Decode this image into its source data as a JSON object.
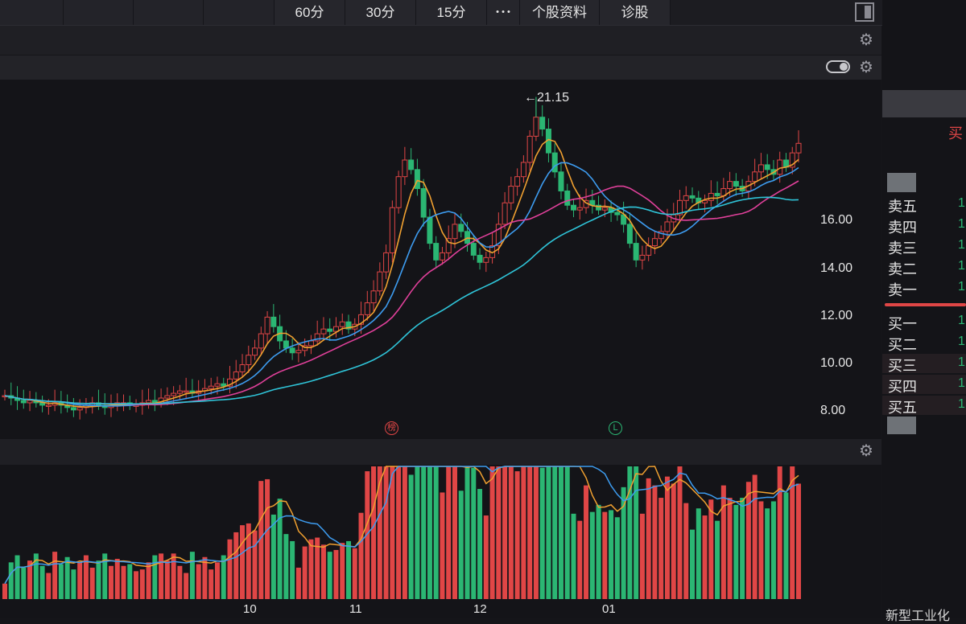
{
  "toolbar": {
    "tabs": [
      "60分",
      "30分",
      "15分"
    ],
    "more_label": "• • •",
    "profile_label": "个股资料",
    "diagnosis_label": "诊股"
  },
  "chart": {
    "peak_label": "←21.15",
    "y_ticks": [
      "16.00",
      "14.00",
      "12.00",
      "10.00",
      "8.00"
    ],
    "x_ticks": [
      "10",
      "11",
      "12",
      "01"
    ],
    "marker_bang": "榜",
    "marker_l": "L"
  },
  "order_book": {
    "sell": [
      "卖五",
      "卖四",
      "卖三",
      "卖二",
      "卖一"
    ],
    "buy": [
      "买一",
      "买二",
      "买三",
      "买四",
      "买五"
    ],
    "value": "1",
    "head_char": "买"
  },
  "footer": {
    "text": "新型工业化"
  },
  "colors": {
    "up": "#e04646",
    "down": "#2bb673",
    "ma5": "#f0a030",
    "ma10": "#3d9cf0",
    "ma20": "#e0409a",
    "ma60": "#2fc4d8",
    "background": "#141418"
  },
  "chart_data": {
    "type": "candlestick",
    "peak_price": 21.15,
    "y_range": [
      7.4,
      22
    ],
    "x_ticks": [
      "10",
      "11",
      "12",
      "01"
    ],
    "price_ticks": [
      16,
      14,
      12,
      10,
      8
    ],
    "close_series": [
      8.6,
      8.5,
      8.4,
      8.3,
      8.4,
      8.3,
      8.2,
      8.2,
      8.3,
      8.2,
      8.1,
      8.0,
      8.1,
      8.2,
      8.3,
      8.2,
      8.1,
      8.2,
      8.3,
      8.3,
      8.2,
      8.2,
      8.3,
      8.4,
      8.3,
      8.5,
      8.6,
      8.7,
      8.8,
      8.8,
      8.7,
      8.8,
      8.9,
      9.0,
      9.1,
      9.0,
      9.3,
      9.6,
      9.9,
      10.3,
      10.6,
      11.2,
      11.9,
      11.5,
      10.9,
      10.6,
      10.4,
      10.5,
      10.7,
      10.9,
      11.2,
      11.4,
      11.3,
      11.5,
      11.7,
      11.4,
      11.6,
      12.0,
      12.5,
      13.0,
      13.8,
      14.6,
      16.5,
      17.8,
      18.5,
      18.1,
      17.3,
      16.1,
      15.0,
      14.3,
      14.6,
      15.2,
      15.8,
      15.5,
      15.0,
      14.5,
      14.2,
      14.4,
      14.9,
      15.8,
      16.7,
      17.4,
      17.8,
      18.4,
      19.5,
      20.3,
      19.8,
      18.8,
      18.0,
      17.2,
      16.6,
      16.4,
      16.5,
      16.8,
      16.6,
      16.4,
      16.5,
      16.3,
      16.2,
      15.8,
      15.0,
      14.3,
      14.5,
      14.9,
      15.2,
      15.5,
      15.9,
      16.2,
      16.8,
      17.0,
      16.9,
      16.7,
      16.8,
      17.1,
      17.0,
      17.3,
      17.6,
      17.4,
      17.2,
      17.6,
      18.0,
      18.3,
      18.1,
      17.9,
      18.5,
      18.2,
      18.8,
      19.2
    ]
  }
}
